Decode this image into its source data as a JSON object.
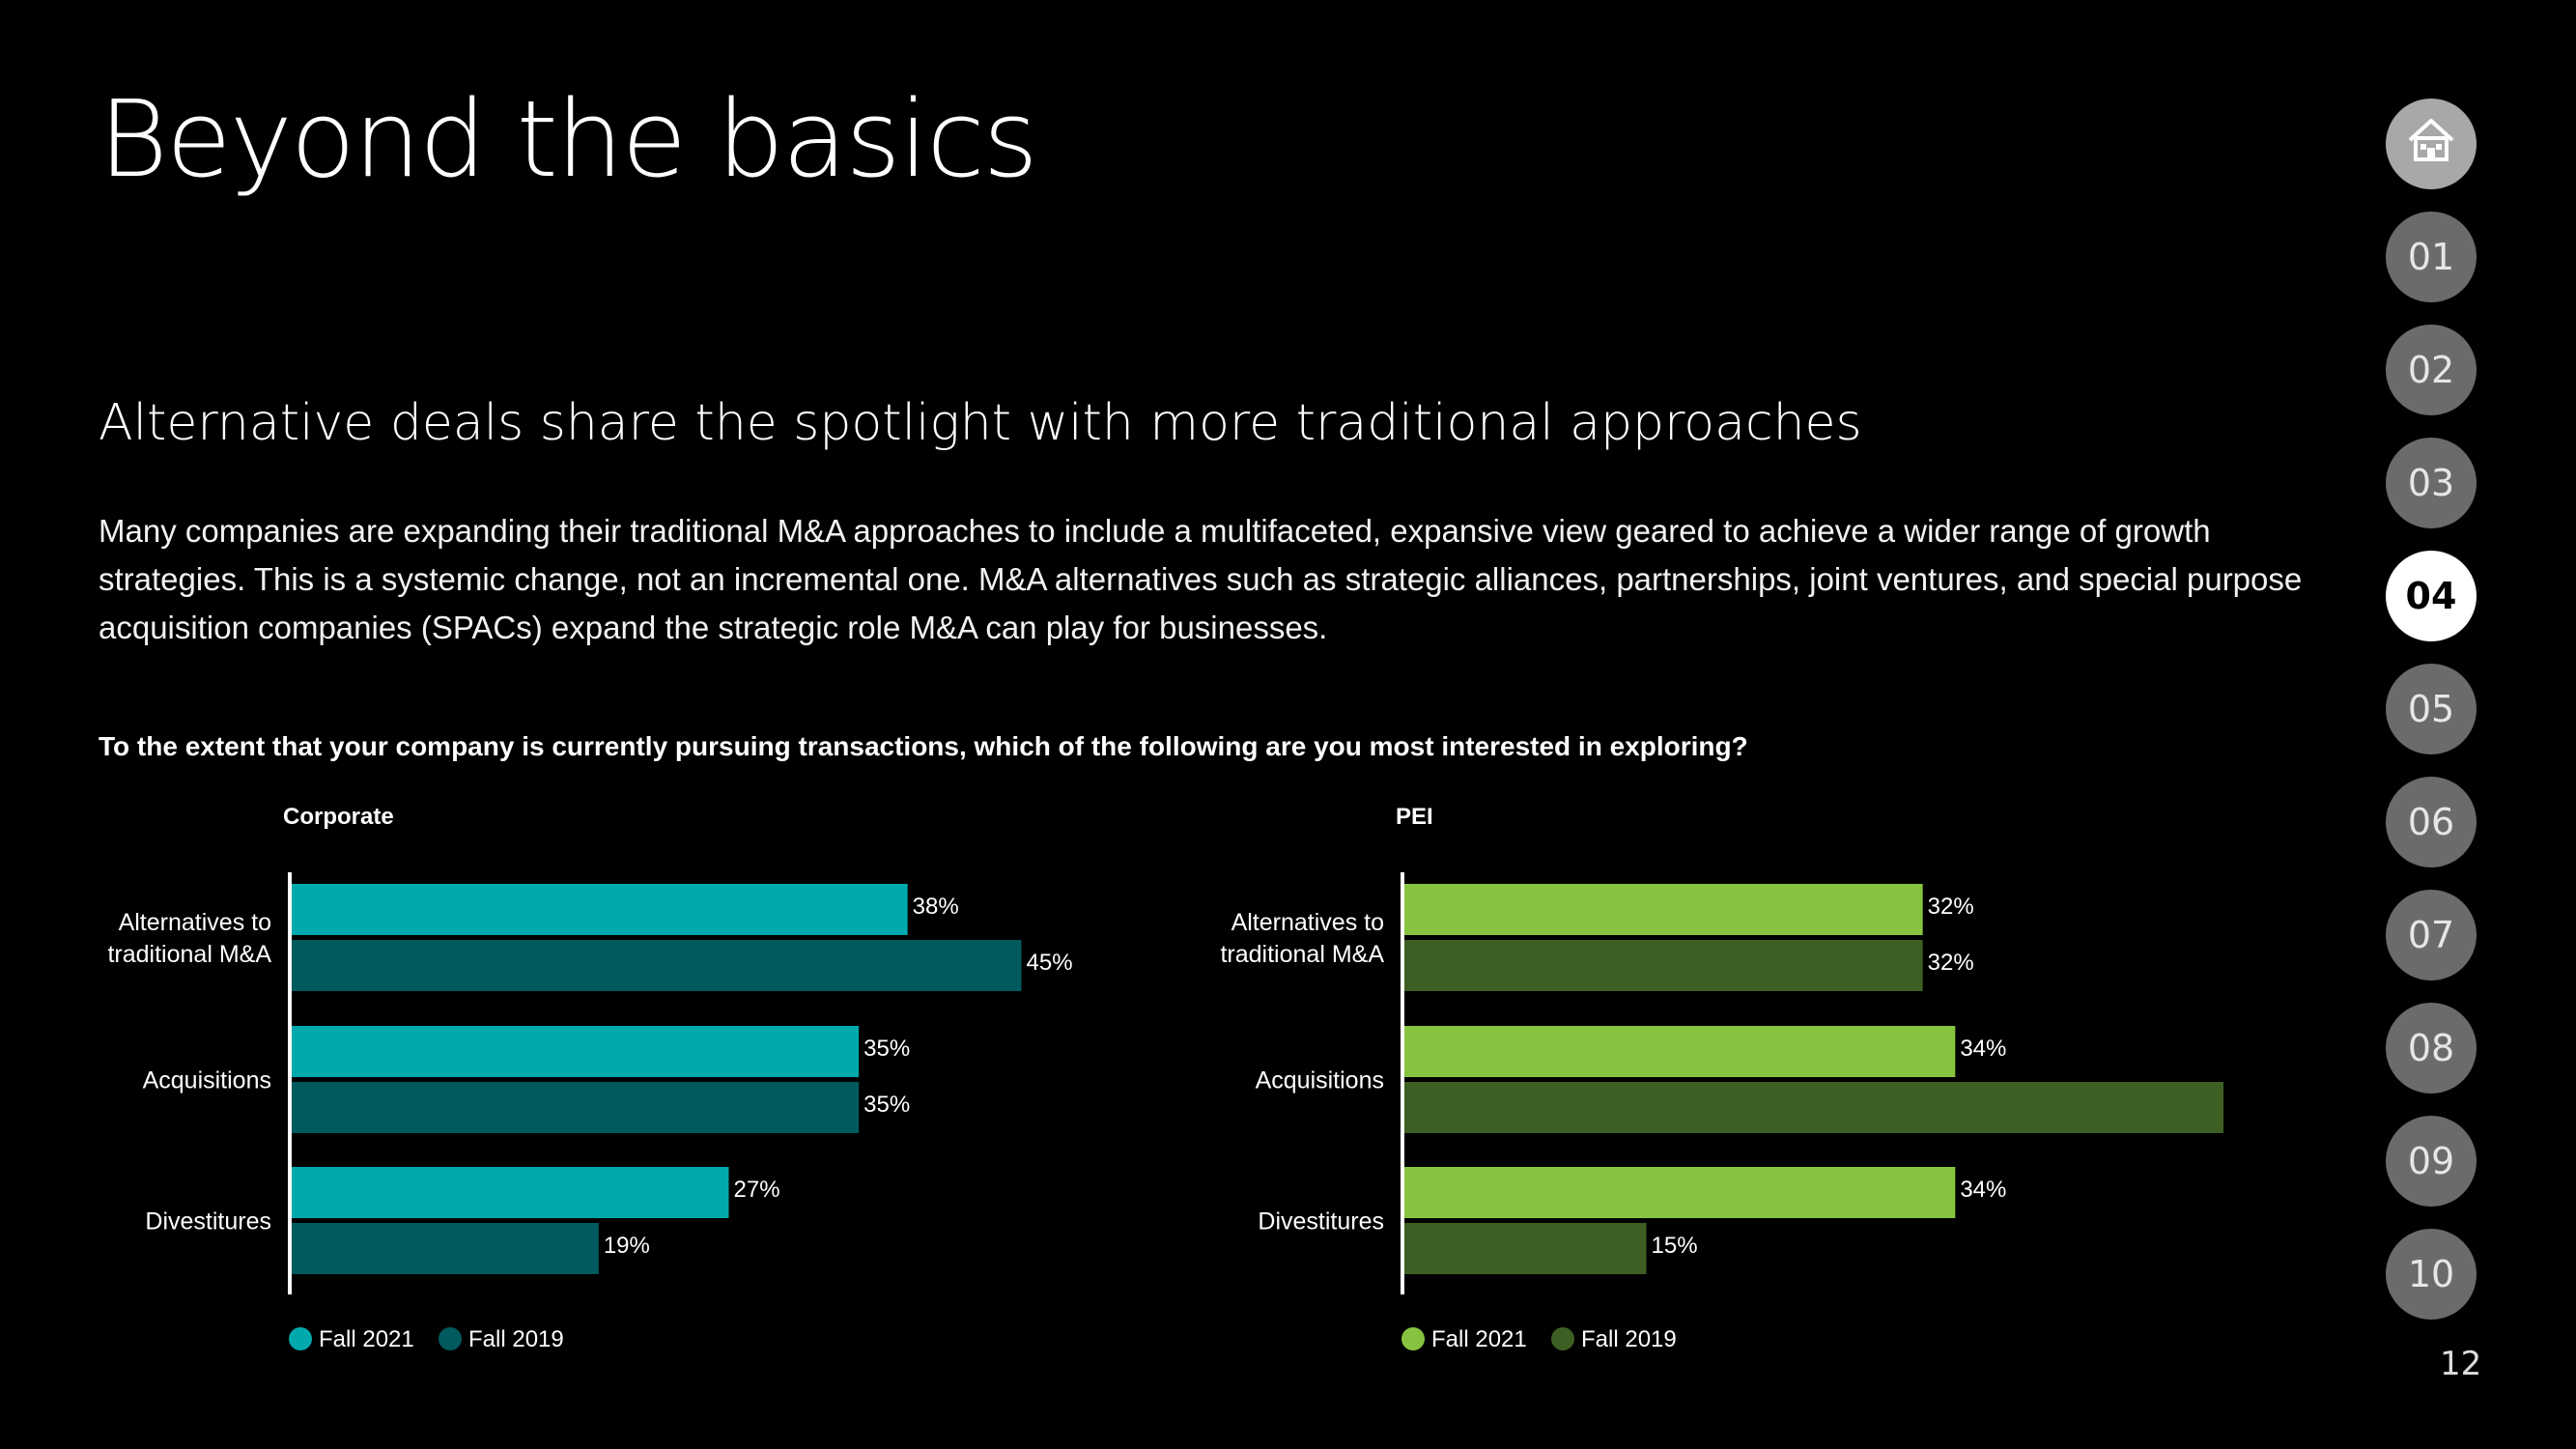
{
  "title": "Beyond the basics",
  "subtitle": "Alternative deals share the spotlight with more traditional approaches",
  "body": "Many companies are expanding their traditional M&A approaches to include a multifaceted, expansive view geared to achieve a wider range of growth strategies. This is a systemic change, not an incremental one. M&A alternatives such as strategic alliances, partnerships, joint ventures, and special purpose acquisition companies (SPACs) expand the strategic role M&A can play for businesses.",
  "question": "To the extent that your company is currently pursuing transactions, which of the following are you most interested in exploring?",
  "nav": {
    "home_icon": "home-icon",
    "items": [
      "01",
      "02",
      "03",
      "04",
      "05",
      "06",
      "07",
      "08",
      "09",
      "10"
    ],
    "active": "04"
  },
  "page_number": "12",
  "chart_data": [
    {
      "type": "bar",
      "orientation": "horizontal",
      "title": "Corporate",
      "categories": [
        "Alternatives to traditional M&A",
        "Acquisitions",
        "Divestitures"
      ],
      "category_lines": [
        [
          "Alternatives to",
          "traditional M&A"
        ],
        [
          "Acquisitions"
        ],
        [
          "Divestitures"
        ]
      ],
      "series": [
        {
          "name": "Fall 2021",
          "values": [
            38,
            35,
            27
          ],
          "color": "#00a9ac"
        },
        {
          "name": "Fall 2019",
          "values": [
            45,
            35,
            19
          ],
          "color": "#005a5e"
        }
      ],
      "unit": "%",
      "xlim": [
        0,
        60
      ],
      "grid": false,
      "legend": "bottom-left"
    },
    {
      "type": "bar",
      "orientation": "horizontal",
      "title": "PEI",
      "categories": [
        "Alternatives to traditional M&A",
        "Acquisitions",
        "Divestitures"
      ],
      "category_lines": [
        [
          "Alternatives to",
          "traditional M&A"
        ],
        [
          "Acquisitions"
        ],
        [
          "Divestitures"
        ]
      ],
      "series": [
        {
          "name": "Fall 2021",
          "values": [
            32,
            34,
            34
          ],
          "color": "#86c440"
        },
        {
          "name": "Fall 2019",
          "values": [
            32,
            53,
            15
          ],
          "color": "#3e5f23"
        }
      ],
      "unit": "%",
      "xlim": [
        0,
        60
      ],
      "grid": false,
      "legend": "bottom-left"
    }
  ]
}
